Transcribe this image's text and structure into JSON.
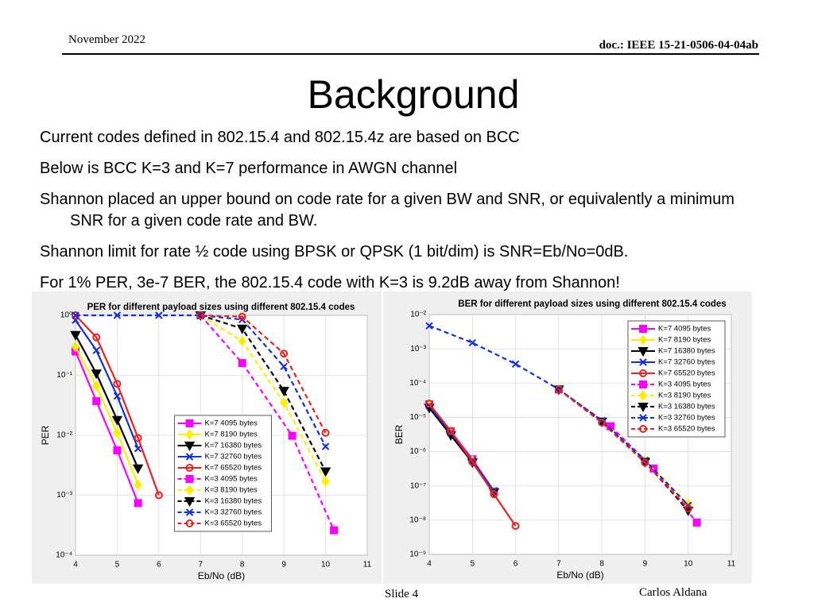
{
  "header": {
    "date": "November 2022",
    "doc": "doc.: IEEE 15-21-0506-04-04ab"
  },
  "title": "Background",
  "bullets": [
    "Current codes defined in 802.15.4 and 802.15.4z are based on BCC",
    "Below is BCC K=3 and K=7 performance in AWGN channel",
    "Shannon placed an upper bound on code rate for a given BW and SNR, or equivalently a minimum SNR for a given code rate and BW.",
    "Shannon limit for rate ½ code using BPSK or QPSK (1 bit/dim) is SNR=Eb/No=0dB.",
    "For 1% PER, 3e-7 BER, the 802.15.4 code with K=3 is 9.2dB away from Shannon!"
  ],
  "footer": {
    "slide": "Slide 4",
    "author": "Carlos Aldana"
  },
  "chart_data": [
    {
      "type": "line",
      "title": "PER for different payload sizes using different 802.15.4 codes",
      "x_label": "Eb/No (dB)",
      "y_label": "PER",
      "y_scale": "log",
      "grid": true,
      "legend": "lower center",
      "xlim": [
        4,
        11
      ],
      "xticks": [
        4,
        5,
        6,
        7,
        8,
        9,
        10,
        11
      ],
      "ylim": [
        0.0001,
        1
      ],
      "yticks": [
        {
          "value": 0.0001,
          "label": "10⁻⁴"
        },
        {
          "value": 0.001,
          "label": "10⁻³"
        },
        {
          "value": 0.01,
          "label": "10⁻²"
        },
        {
          "value": 0.1,
          "label": "10⁻¹"
        },
        {
          "value": 1,
          "label": "10⁰"
        }
      ],
      "series": [
        {
          "name": "K=7 4095 bytes",
          "color": "#ff00ff",
          "marker": "square",
          "linestyle": "solid",
          "x": [
            4,
            4.5,
            5,
            5.5
          ],
          "values": [
            0.25,
            0.037,
            0.0056,
            0.00074
          ]
        },
        {
          "name": "K=7 8190 bytes",
          "color": "#ffee00",
          "marker": "diamond",
          "linestyle": "solid",
          "x": [
            4,
            4.5,
            5,
            5.5
          ],
          "values": [
            0.3,
            0.066,
            0.011,
            0.0015
          ]
        },
        {
          "name": "K=7 16380 bytes",
          "color": "#000000",
          "marker": "triangle",
          "linestyle": "solid",
          "x": [
            4,
            4.5,
            5,
            5.5
          ],
          "values": [
            0.47,
            0.107,
            0.018,
            0.0028
          ]
        },
        {
          "name": "K=7 32760 bytes",
          "color": "#1030e0",
          "marker": "x",
          "linestyle": "solid",
          "x": [
            4,
            4.5,
            5,
            5.5
          ],
          "values": [
            0.83,
            0.26,
            0.045,
            0.006
          ]
        },
        {
          "name": "K=7 65520 bytes",
          "color": "#ee2020",
          "marker": "circle",
          "linestyle": "solid",
          "x": [
            4,
            4.5,
            5,
            5.5,
            6
          ],
          "values": [
            1,
            0.43,
            0.072,
            0.009,
            0.001
          ]
        },
        {
          "name": "K=3 4095 bytes",
          "color": "#ff00ff",
          "marker": "square",
          "linestyle": "dashed",
          "x": [
            7,
            8,
            9.2,
            10.2
          ],
          "values": [
            1,
            0.16,
            0.0098,
            0.00026
          ]
        },
        {
          "name": "K=3 8190 bytes",
          "color": "#ffee00",
          "marker": "diamond",
          "linestyle": "dashed",
          "x": [
            7,
            8,
            9,
            10
          ],
          "values": [
            1,
            0.37,
            0.035,
            0.0017
          ]
        },
        {
          "name": "K=3 16380 bytes",
          "color": "#000000",
          "marker": "triangle",
          "linestyle": "dashed",
          "x": [
            7,
            8,
            9,
            10
          ],
          "values": [
            1,
            0.6,
            0.055,
            0.0025
          ]
        },
        {
          "name": "K=3 32760 bytes",
          "color": "#1030e0",
          "marker": "x",
          "linestyle": "dashed",
          "x": [
            4,
            5,
            6,
            7,
            8,
            9,
            10
          ],
          "values": [
            1,
            1,
            1,
            1,
            0.85,
            0.14,
            0.0065
          ]
        },
        {
          "name": "K=3 65520 bytes",
          "color": "#ee2020",
          "marker": "circle",
          "linestyle": "dashed",
          "x": [
            7,
            8,
            9,
            10
          ],
          "values": [
            1,
            0.95,
            0.23,
            0.011
          ]
        }
      ]
    },
    {
      "type": "line",
      "title": "BER for different payload sizes using different 802.15.4 codes",
      "x_label": "Eb/No (dB)",
      "y_label": "BER",
      "y_scale": "log",
      "grid": true,
      "legend": "upper right",
      "xlim": [
        4,
        11
      ],
      "xticks": [
        4,
        5,
        6,
        7,
        8,
        9,
        10,
        11
      ],
      "ylim": [
        1e-09,
        0.01
      ],
      "yticks": [
        {
          "value": 1e-09,
          "label": "10⁻⁹"
        },
        {
          "value": 1e-08,
          "label": "10⁻⁸"
        },
        {
          "value": 1e-07,
          "label": "10⁻⁷"
        },
        {
          "value": 1e-06,
          "label": "10⁻⁶"
        },
        {
          "value": 1e-05,
          "label": "10⁻⁵"
        },
        {
          "value": 0.0001,
          "label": "10⁻⁴"
        },
        {
          "value": 0.001,
          "label": "10⁻³"
        },
        {
          "value": 0.01,
          "label": "10⁻²"
        }
      ],
      "series": [
        {
          "name": "K=7 4095 bytes",
          "color": "#ff00ff",
          "marker": "square",
          "linestyle": "solid",
          "x": [
            4,
            4.5,
            5,
            5.5
          ],
          "values": [
            2.4e-05,
            3.9e-06,
            6e-07,
            7e-08
          ]
        },
        {
          "name": "K=7 8190 bytes",
          "color": "#ffee00",
          "marker": "diamond",
          "linestyle": "solid",
          "x": [
            4,
            4.5,
            5,
            5.5
          ],
          "values": [
            2.4e-05,
            3.5e-06,
            5.5e-07,
            7e-08
          ]
        },
        {
          "name": "K=7 16380 bytes",
          "color": "#000000",
          "marker": "triangle",
          "linestyle": "solid",
          "x": [
            4,
            4.5,
            5,
            5.5
          ],
          "values": [
            1.9e-05,
            3e-06,
            4.8e-07,
            6.5e-08
          ]
        },
        {
          "name": "K=7 32760 bytes",
          "color": "#1030e0",
          "marker": "x",
          "linestyle": "solid",
          "x": [
            4,
            4.5,
            5,
            5.5
          ],
          "values": [
            2.2e-05,
            3.5e-06,
            5.5e-07,
            7e-08
          ]
        },
        {
          "name": "K=7 65520 bytes",
          "color": "#ee2020",
          "marker": "circle",
          "linestyle": "solid",
          "x": [
            4,
            4.5,
            5,
            5.5,
            6
          ],
          "values": [
            2.5e-05,
            4e-06,
            5e-07,
            5.7e-08,
            6.8e-09
          ]
        },
        {
          "name": "K=3 4095 bytes",
          "color": "#ff00ff",
          "marker": "square",
          "linestyle": "dashed",
          "x": [
            7,
            8.2,
            9.2,
            10.2
          ],
          "values": [
            6.5e-05,
            5.5e-06,
            3.2e-07,
            8.5e-09
          ]
        },
        {
          "name": "K=3 8190 bytes",
          "color": "#ffee00",
          "marker": "diamond",
          "linestyle": "dashed",
          "x": [
            7,
            8,
            9,
            10
          ],
          "values": [
            6.5e-05,
            7.5e-06,
            5.5e-07,
            3e-08
          ]
        },
        {
          "name": "K=3 16380 bytes",
          "color": "#000000",
          "marker": "triangle",
          "linestyle": "dashed",
          "x": [
            7,
            8,
            9,
            10
          ],
          "values": [
            6.5e-05,
            7.5e-06,
            5e-07,
            1.9e-08
          ]
        },
        {
          "name": "K=3 32760 bytes",
          "color": "#1030e0",
          "marker": "x",
          "linestyle": "dashed",
          "x": [
            4,
            5,
            6,
            7,
            8,
            9,
            10
          ],
          "values": [
            0.0047,
            0.0015,
            0.00036,
            6.6e-05,
            8e-06,
            5.6e-07,
            2.7e-08
          ]
        },
        {
          "name": "K=3 65520 bytes",
          "color": "#ee2020",
          "marker": "circle",
          "linestyle": "dashed",
          "x": [
            7,
            8,
            9,
            10
          ],
          "values": [
            6.5e-05,
            7e-06,
            4.8e-07,
            2.2e-08
          ]
        }
      ]
    }
  ]
}
